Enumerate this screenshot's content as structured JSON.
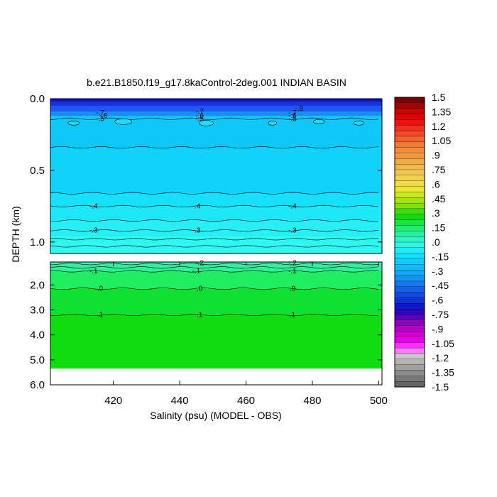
{
  "chart_data": {
    "type": "heatmap",
    "title": "b.e21.B1850.f19_g17.8kaControl-2deg.001 INDIAN BASIN",
    "xlabel": "Salinity (psu) (MODEL - OBS)",
    "ylabel": "DEPTH (km)",
    "x_ticks": [
      "420",
      "440",
      "460",
      "480",
      "500"
    ],
    "x_range": [
      401,
      501
    ],
    "upper_panel": {
      "y_ticks": [
        "0.0",
        "0.5",
        "1.0"
      ],
      "y_range": [
        0,
        1.08
      ],
      "bands": [
        {
          "y0": 0.0,
          "y1": 0.02,
          "color": "#1010c8"
        },
        {
          "y0": 0.02,
          "y1": 0.05,
          "color": "#1a32e0"
        },
        {
          "y0": 0.05,
          "y1": 0.09,
          "color": "#1e5af0"
        },
        {
          "y0": 0.09,
          "y1": 0.12,
          "color": "#1a8cf6"
        },
        {
          "y0": 0.12,
          "y1": 0.34,
          "color": "#10c8f8"
        },
        {
          "y0": 0.34,
          "y1": 0.66,
          "color": "#10d2fa"
        },
        {
          "y0": 0.66,
          "y1": 0.75,
          "color": "#16e0fa"
        },
        {
          "y0": 0.75,
          "y1": 0.85,
          "color": "#1ee8f8"
        },
        {
          "y0": 0.85,
          "y1": 0.96,
          "color": "#26f0f4"
        },
        {
          "y0": 0.96,
          "y1": 1.08,
          "color": "#2ef8f0"
        }
      ],
      "contours": [
        0.14,
        0.34,
        0.66,
        0.75,
        0.85,
        0.92,
        0.98,
        1.03
      ],
      "contour_labels": [
        {
          "text": "-.7",
          "x": 416,
          "y": 0.1
        },
        {
          "text": "-.6",
          "x": 417,
          "y": 0.12
        },
        {
          "text": "-.5",
          "x": 416,
          "y": 0.14
        },
        {
          "text": "-.7",
          "x": 446,
          "y": 0.09
        },
        {
          "text": "-.6",
          "x": 446,
          "y": 0.12
        },
        {
          "text": "-.5",
          "x": 446,
          "y": 0.14
        },
        {
          "text": "-.8",
          "x": 476,
          "y": 0.07
        },
        {
          "text": "-.7",
          "x": 474,
          "y": 0.1
        },
        {
          "text": "-.6",
          "x": 474,
          "y": 0.12
        },
        {
          "text": "-.5",
          "x": 474,
          "y": 0.14
        },
        {
          "text": "-.4",
          "x": 414,
          "y": 0.75
        },
        {
          "text": "-.4",
          "x": 445,
          "y": 0.75
        },
        {
          "text": "-.4",
          "x": 474,
          "y": 0.75
        },
        {
          "text": "-.3",
          "x": 414,
          "y": 0.92
        },
        {
          "text": "-.3",
          "x": 445,
          "y": 0.92
        },
        {
          "text": "-.3",
          "x": 474,
          "y": 0.92
        }
      ]
    },
    "lower_panel": {
      "y_ticks": [
        "2.0",
        "3.0",
        "4.0",
        "5.0",
        "6.0"
      ],
      "y_range": [
        1.08,
        6.0
      ],
      "bands": [
        {
          "y0": 1.08,
          "y1": 1.16,
          "color": "#40f0c8"
        },
        {
          "y0": 1.16,
          "y1": 1.45,
          "color": "#30f09a"
        },
        {
          "y0": 1.45,
          "y1": 2.15,
          "color": "#20ee60"
        },
        {
          "y0": 2.15,
          "y1": 3.2,
          "color": "#10e030"
        },
        {
          "y0": 3.2,
          "y1": 5.35,
          "color": "#10dd10"
        }
      ],
      "no_data_below": 5.35,
      "contours": [
        1.16,
        1.3,
        1.45,
        2.15,
        3.2
      ],
      "contour_labels": [
        {
          "text": "-.2",
          "x": 446,
          "y": 1.12
        },
        {
          "text": "-.2",
          "x": 474,
          "y": 1.12
        },
        {
          "text": "-.1",
          "x": 414,
          "y": 1.45
        },
        {
          "text": "-.1",
          "x": 445,
          "y": 1.45
        },
        {
          "text": "-.1",
          "x": 474,
          "y": 1.45
        },
        {
          "text": ".0",
          "x": 416,
          "y": 2.15
        },
        {
          "text": ".0",
          "x": 446,
          "y": 2.15
        },
        {
          "text": ".0",
          "x": 474,
          "y": 2.15
        },
        {
          "text": ".1",
          "x": 416,
          "y": 3.2
        },
        {
          "text": ".1",
          "x": 446,
          "y": 3.2
        },
        {
          "text": ".1",
          "x": 474,
          "y": 3.2
        }
      ]
    },
    "colorbar": {
      "labels": [
        "1.5",
        "1.35",
        "1.2",
        "1.05",
        ".9",
        ".75",
        ".6",
        ".45",
        ".3",
        ".15",
        ".0",
        "-.15",
        "-.3",
        "-.45",
        "-.6",
        "-.75",
        "-.9",
        "-1.05",
        "-1.2",
        "-1.35",
        "-1.5"
      ],
      "colors": [
        "#7a0000",
        "#a00000",
        "#c80000",
        "#e00000",
        "#f01010",
        "#f03020",
        "#f04a28",
        "#f06030",
        "#f07a34",
        "#f08c3a",
        "#f09a40",
        "#f0aa48",
        "#f0b84e",
        "#f0c450",
        "#f0d050",
        "#f0dc48",
        "#e8e830",
        "#c8e820",
        "#a8e410",
        "#80e010",
        "#40dc10",
        "#10dc10",
        "#18e440",
        "#20ec70",
        "#28f0a0",
        "#30f4c8",
        "#34f4e8",
        "#20ecfa",
        "#18dcfa",
        "#10ccf8",
        "#10bcf6",
        "#12a8f4",
        "#1494f2",
        "#1478ec",
        "#1460e6",
        "#1448e0",
        "#1030d8",
        "#1018c8",
        "#2a08c0",
        "#5a00b8",
        "#8c00b8",
        "#b400c0",
        "#d000d0",
        "#e600e6",
        "#ff30ff",
        "#ff78ff",
        "#c8c8c8",
        "#b4b4b4",
        "#a0a0a0",
        "#8c8c8c",
        "#787878",
        "#646464"
      ]
    }
  }
}
